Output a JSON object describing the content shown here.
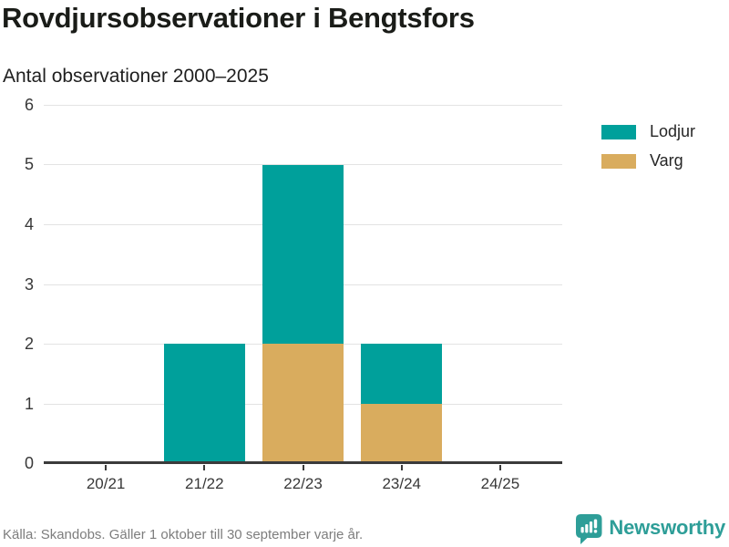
{
  "header": {
    "title": "Rovdjursobservationer i Bengtsfors",
    "subtitle": "Antal observationer 2000–2025"
  },
  "chart_data": {
    "type": "bar",
    "stacked": true,
    "title": "Rovdjursobservationer i Bengtsfors",
    "subtitle": "Antal observationer 2000–2025",
    "categories": [
      "20/21",
      "21/22",
      "22/23",
      "23/24",
      "24/25"
    ],
    "series": [
      {
        "name": "Varg",
        "color": "#d9ac5e",
        "values": [
          0,
          0,
          2,
          1,
          0
        ]
      },
      {
        "name": "Lodjur",
        "color": "#00a09b",
        "values": [
          0,
          2,
          3,
          1,
          0
        ]
      }
    ],
    "totals": [
      0,
      2,
      5,
      2,
      0
    ],
    "xlabel": "",
    "ylabel": "",
    "ylim": [
      0,
      6
    ],
    "ytick_step": 1,
    "grid": true,
    "legend_position": "right",
    "source": "Källa: Skandobs. Gäller 1 oktober till 30 september varje år."
  },
  "legend": {
    "items": [
      {
        "label": "Lodjur",
        "color": "#00a09b"
      },
      {
        "label": "Varg",
        "color": "#d9ac5e"
      }
    ]
  },
  "footer": {
    "source": "Källa: Skandobs. Gäller 1 oktober till 30 september varje år.",
    "brand": "Newsworthy",
    "brand_color": "#2e9e98",
    "logo_icon": "bar-chart-speech-bubble-icon"
  },
  "colors": {
    "lodjur": "#00a09b",
    "varg": "#d9ac5e",
    "gridline": "#e3e3e3",
    "axis": "#3b3b3b",
    "title_text": "#1a1c18",
    "muted_text": "#7d7d7d"
  }
}
